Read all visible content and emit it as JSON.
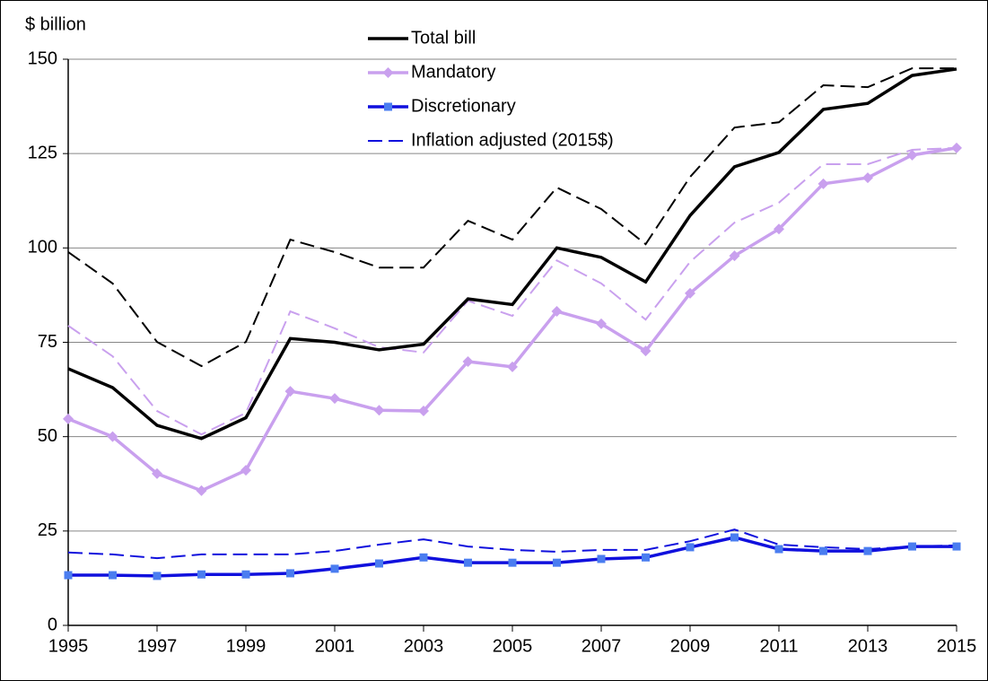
{
  "chart_data": {
    "type": "line",
    "y_axis_label": "$ billion",
    "x": [
      1995,
      1996,
      1997,
      1998,
      1999,
      2000,
      2001,
      2002,
      2003,
      2004,
      2005,
      2006,
      2007,
      2008,
      2009,
      2010,
      2011,
      2012,
      2013,
      2014,
      2015
    ],
    "xlim": [
      1995,
      2015
    ],
    "xticks": [
      1995,
      1997,
      1999,
      2001,
      2003,
      2005,
      2007,
      2009,
      2011,
      2013,
      2015
    ],
    "ylim": [
      0,
      150
    ],
    "yticks": [
      0,
      25,
      50,
      75,
      100,
      125,
      150
    ],
    "grid": true,
    "legend": "top",
    "series": [
      {
        "name": "Total bill",
        "color": "#000000",
        "marker": "none",
        "values": [
          68,
          63,
          53,
          49.5,
          55,
          76,
          75,
          73,
          74.5,
          86.5,
          85,
          100,
          97.5,
          91,
          108.6,
          121.5,
          125.3,
          136.7,
          138.3,
          145.7,
          147.4
        ],
        "adjusted_values": [
          98.9,
          90.6,
          75.1,
          68.7,
          75.1,
          102.2,
          98.9,
          94.8,
          94.8,
          107.2,
          102.2,
          116,
          110.3,
          101,
          118.8,
          131.9,
          133.3,
          143.1,
          142.6,
          147.6,
          147.6
        ]
      },
      {
        "name": "Mandatory",
        "color": "#c9a0ee",
        "marker": "diamond",
        "values": [
          54.7,
          50,
          40.2,
          35.7,
          41.1,
          62,
          60.1,
          57,
          56.8,
          69.9,
          68.5,
          83.2,
          79.9,
          72.7,
          88,
          97.9,
          105,
          117,
          118.6,
          124.6,
          126.5
        ],
        "adjusted_values": [
          79.4,
          71.3,
          56.8,
          50.6,
          56.3,
          83.2,
          78.7,
          73.7,
          72.3,
          86,
          82,
          96.7,
          90.6,
          81,
          96.3,
          106.7,
          112,
          122.2,
          122.2,
          126,
          126.5
        ]
      },
      {
        "name": "Discretionary",
        "color": "#1010dd",
        "marker": "square",
        "marker_color": "#4a7df0",
        "values": [
          13.3,
          13.3,
          13.1,
          13.5,
          13.5,
          13.8,
          15,
          16.4,
          18,
          16.6,
          16.6,
          16.6,
          17.6,
          18,
          20.7,
          23.3,
          20.2,
          19.7,
          19.7,
          20.9,
          20.9
        ],
        "adjusted_values": [
          19.3,
          18.8,
          17.8,
          18.8,
          18.8,
          18.8,
          19.7,
          21.4,
          22.8,
          20.9,
          20,
          19.5,
          20,
          20,
          22.3,
          25.4,
          21.4,
          20.7,
          20.2,
          20.9,
          21.2
        ]
      }
    ],
    "adjusted_label": "Inflation adjusted (2015$)",
    "adjusted_color": "#1010dd"
  }
}
